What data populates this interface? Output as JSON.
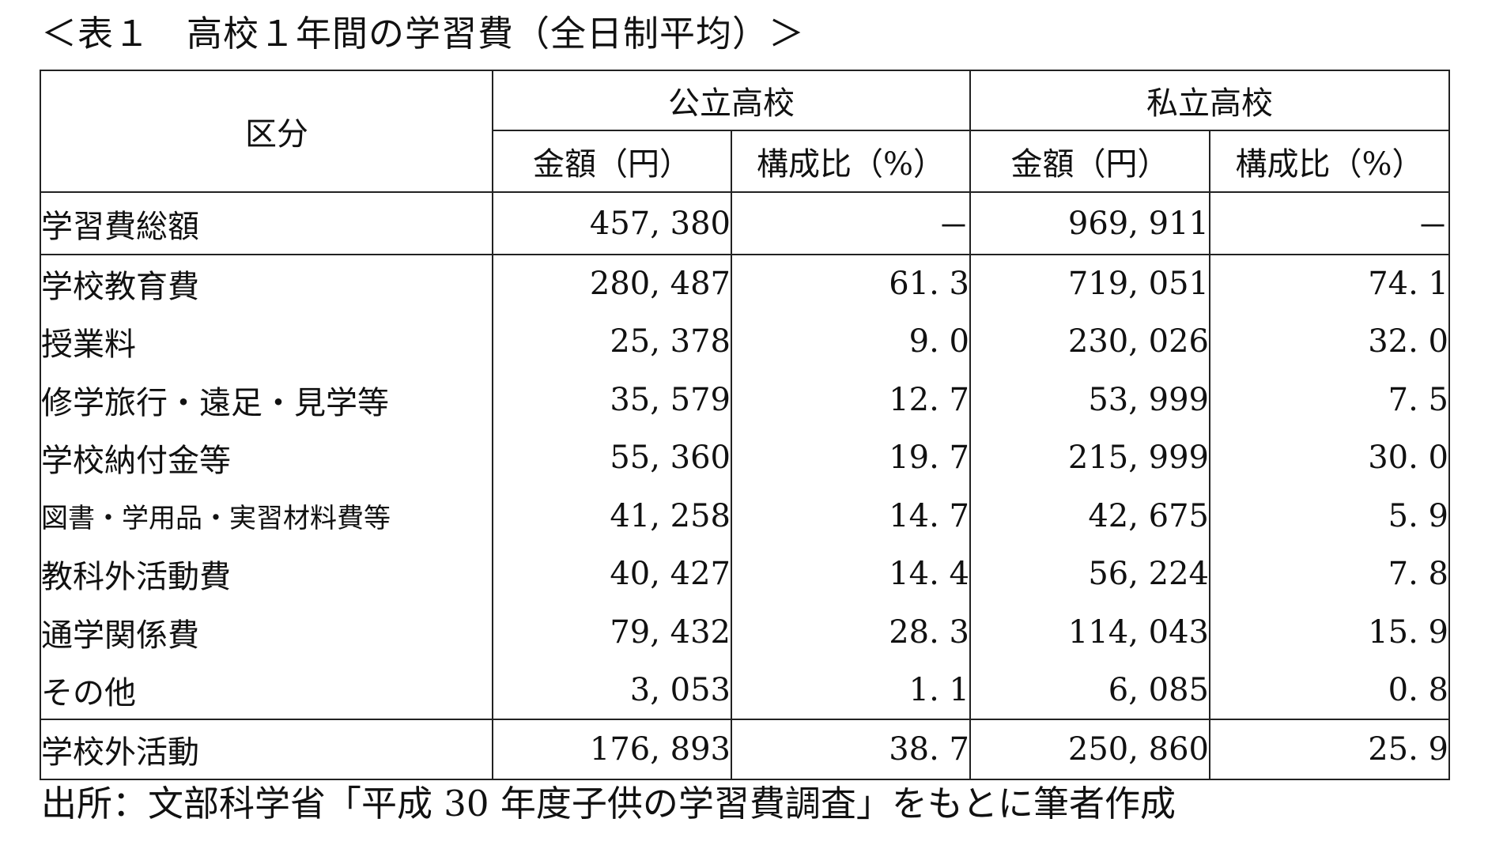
{
  "title": "＜表１　高校１年間の学習費（全日制平均）＞",
  "header": {
    "kubun": "区分",
    "public": "公立高校",
    "private": "私立高校",
    "amount": "金額（円）",
    "ratio": "構成比（%）"
  },
  "rows": [
    {
      "label": "学習費総額",
      "pub_amount": "457, 380",
      "pub_ratio": "－",
      "pri_amount": "969, 911",
      "pri_ratio": "－"
    },
    {
      "label": "学校教育費",
      "pub_amount": "280, 487",
      "pub_ratio": "61. 3",
      "pri_amount": "719, 051",
      "pri_ratio": "74. 1"
    },
    {
      "label": "授業料",
      "pub_amount": "25, 378",
      "pub_ratio": "9. 0",
      "pri_amount": "230, 026",
      "pri_ratio": "32. 0"
    },
    {
      "label": "修学旅行・遠足・見学等",
      "pub_amount": "35, 579",
      "pub_ratio": "12. 7",
      "pri_amount": "53, 999",
      "pri_ratio": "7. 5"
    },
    {
      "label": "学校納付金等",
      "pub_amount": "55, 360",
      "pub_ratio": "19. 7",
      "pri_amount": "215, 999",
      "pri_ratio": "30. 0"
    },
    {
      "label": "図書・学用品・実習材料費等",
      "pub_amount": "41, 258",
      "pub_ratio": "14. 7",
      "pri_amount": "42, 675",
      "pri_ratio": "5. 9"
    },
    {
      "label": "教科外活動費",
      "pub_amount": "40, 427",
      "pub_ratio": "14. 4",
      "pri_amount": "56, 224",
      "pri_ratio": "7. 8"
    },
    {
      "label": "通学関係費",
      "pub_amount": "79, 432",
      "pub_ratio": "28. 3",
      "pri_amount": "114, 043",
      "pri_ratio": "15. 9"
    },
    {
      "label": "その他",
      "pub_amount": "3, 053",
      "pub_ratio": "1. 1",
      "pri_amount": "6, 085",
      "pri_ratio": "0. 8"
    },
    {
      "label": "学校外活動",
      "pub_amount": "176, 893",
      "pub_ratio": "38. 7",
      "pri_amount": "250, 860",
      "pri_ratio": "25. 9"
    }
  ],
  "source": "出所：文部科学省「平成 30 年度子供の学習費調査」をもとに筆者作成"
}
